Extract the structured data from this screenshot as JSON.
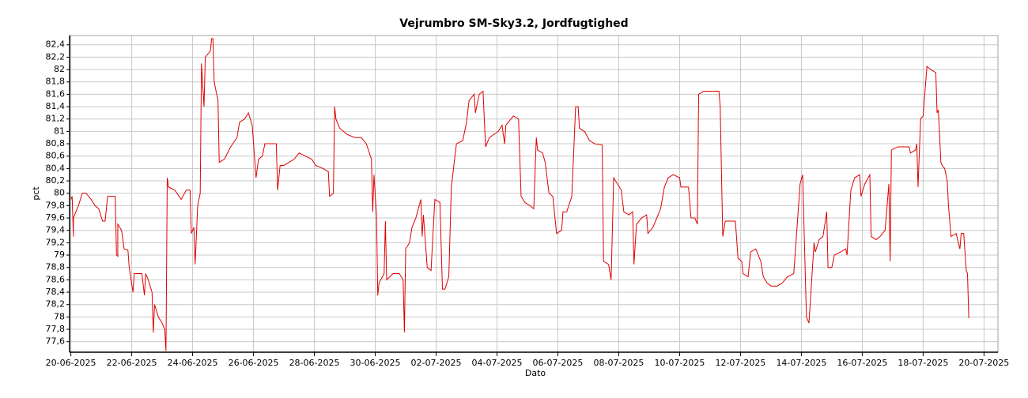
{
  "chart_data": {
    "type": "line",
    "title": "Vejrumbro SM-Sky3.2, Jordfugtighed",
    "x_label": "Dato",
    "y_label": "pct",
    "grid": true,
    "xlim": [
      "2025-06-19 23:00",
      "2025-07-20 11:00"
    ],
    "xticks": [
      {
        "value": "2025-06-20 00:00",
        "label": "20-06-2025"
      },
      {
        "value": "2025-06-22 00:00",
        "label": "22-06-2025"
      },
      {
        "value": "2025-06-24 00:00",
        "label": "24-06-2025"
      },
      {
        "value": "2025-06-26 00:00",
        "label": "26-06-2025"
      },
      {
        "value": "2025-06-28 00:00",
        "label": "28-06-2025"
      },
      {
        "value": "2025-06-30 00:00",
        "label": "30-06-2025"
      },
      {
        "value": "2025-07-02 00:00",
        "label": "02-07-2025"
      },
      {
        "value": "2025-07-04 00:00",
        "label": "04-07-2025"
      },
      {
        "value": "2025-07-06 00:00",
        "label": "06-07-2025"
      },
      {
        "value": "2025-07-08 00:00",
        "label": "08-07-2025"
      },
      {
        "value": "2025-07-10 00:00",
        "label": "10-07-2025"
      },
      {
        "value": "2025-07-12 00:00",
        "label": "12-07-2025"
      },
      {
        "value": "2025-07-14 00:00",
        "label": "14-07-2025"
      },
      {
        "value": "2025-07-16 00:00",
        "label": "16-07-2025"
      },
      {
        "value": "2025-07-18 00:00",
        "label": "18-07-2025"
      },
      {
        "value": "2025-07-20 00:00",
        "label": "20-07-2025"
      }
    ],
    "ylim": [
      77.43,
      82.55
    ],
    "yticks": [
      {
        "value": 77.6,
        "label": "77,6"
      },
      {
        "value": 77.8,
        "label": "77,8"
      },
      78,
      {
        "value": 78.2,
        "label": "78,2"
      },
      {
        "value": 78.4,
        "label": "78,4"
      },
      {
        "value": 78.6,
        "label": "78,6"
      },
      {
        "value": 78.8,
        "label": "78,8"
      },
      79,
      {
        "value": 79.2,
        "label": "79,2"
      },
      {
        "value": 79.4,
        "label": "79,4"
      },
      {
        "value": 79.6,
        "label": "79,6"
      },
      {
        "value": 79.8,
        "label": "79,8"
      },
      80,
      {
        "value": 80.2,
        "label": "80,2"
      },
      {
        "value": 80.4,
        "label": "80,4"
      },
      {
        "value": 80.6,
        "label": "80,6"
      },
      {
        "value": 80.8,
        "label": "80,8"
      },
      81,
      {
        "value": 81.2,
        "label": "81,2"
      },
      {
        "value": 81.4,
        "label": "81,4"
      },
      {
        "value": 81.6,
        "label": "81,6"
      },
      {
        "value": 81.8,
        "label": "81,8"
      },
      82,
      {
        "value": 82.2,
        "label": "82,2"
      },
      {
        "value": 82.4,
        "label": "82,4"
      }
    ],
    "series": [
      {
        "color": "#e00000",
        "x": [
          "2025-06-20 00:00",
          "2025-06-20 01:00",
          "2025-06-20 02:00",
          "2025-06-20 02:00",
          "2025-06-20 04:00",
          "2025-06-20 06:00",
          "2025-06-20 09:00",
          "2025-06-20 12:00",
          "2025-06-20 16:00",
          "2025-06-20 19:00",
          "2025-06-20 22:00",
          "2025-06-21 01:00",
          "2025-06-21 03:00",
          "2025-06-21 05:00",
          "2025-06-21 11:00",
          "2025-06-21 12:00",
          "2025-06-21 13:00",
          "2025-06-21 13:00",
          "2025-06-21 16:00",
          "2025-06-21 18:00",
          "2025-06-21 21:00",
          "2025-06-21 22:00",
          "2025-06-22 01:00",
          "2025-06-22 02:00",
          "2025-06-22 08:00",
          "2025-06-22 10:00",
          "2025-06-22 11:00",
          "2025-06-22 13:00",
          "2025-06-22 16:00",
          "2025-06-22 17:00",
          "2025-06-22 18:00",
          "2025-06-22 21:00",
          "2025-06-23 00:00",
          "2025-06-23 02:00",
          "2025-06-23 03:00",
          "2025-06-23 04:00",
          "2025-06-23 05:00",
          "2025-06-23 10:00",
          "2025-06-23 15:00",
          "2025-06-23 19:00",
          "2025-06-23 22:00",
          "2025-06-23 23:00",
          "2025-06-24 01:00",
          "2025-06-24 02:00",
          "2025-06-24 04:00",
          "2025-06-24 06:00",
          "2025-06-24 07:00",
          "2025-06-24 09:00",
          "2025-06-24 10:00",
          "2025-06-24 14:00",
          "2025-06-24 15:00",
          "2025-06-24 16:00",
          "2025-06-24 17:00",
          "2025-06-24 20:00",
          "2025-06-24 21:00",
          "2025-06-25 01:00",
          "2025-06-25 06:00",
          "2025-06-25 11:00",
          "2025-06-25 13:00",
          "2025-06-25 17:00",
          "2025-06-25 20:00",
          "2025-06-25 23:00",
          "2025-06-26 02:00",
          "2025-06-26 04:00",
          "2025-06-26 07:00",
          "2025-06-26 09:00",
          "2025-06-26 14:00",
          "2025-06-26 18:00",
          "2025-06-26 19:00",
          "2025-06-26 21:00",
          "2025-06-27 00:00",
          "2025-06-27 04:00",
          "2025-06-27 08:00",
          "2025-06-27 12:00",
          "2025-06-27 17:00",
          "2025-06-27 22:00",
          "2025-06-28 01:00",
          "2025-06-28 07:00",
          "2025-06-28 11:00",
          "2025-06-28 12:00",
          "2025-06-28 15:00",
          "2025-06-28 16:00",
          "2025-06-28 17:00",
          "2025-06-28 20:00",
          "2025-06-29 02:00",
          "2025-06-29 08:00",
          "2025-06-29 13:00",
          "2025-06-29 17:00",
          "2025-06-29 21:00",
          "2025-06-29 22:00",
          "2025-06-29 23:00",
          "2025-06-30 01:00",
          "2025-06-30 02:00",
          "2025-06-30 03:00",
          "2025-06-30 07:00",
          "2025-06-30 08:00",
          "2025-06-30 09:00",
          "2025-06-30 14:00",
          "2025-06-30 19:00",
          "2025-06-30 22:00",
          "2025-06-30 23:00",
          "2025-07-01 00:00",
          "2025-07-01 03:00",
          "2025-07-01 05:00",
          "2025-07-01 08:00",
          "2025-07-01 12:00",
          "2025-07-01 13:00",
          "2025-07-01 14:00",
          "2025-07-01 17:00",
          "2025-07-01 20:00",
          "2025-07-01 23:00",
          "2025-07-02 03:00",
          "2025-07-02 05:00",
          "2025-07-02 07:00",
          "2025-07-02 10:00",
          "2025-07-02 12:00",
          "2025-07-02 16:00",
          "2025-07-02 21:00",
          "2025-07-03 00:00",
          "2025-07-03 02:00",
          "2025-07-03 06:00",
          "2025-07-03 07:00",
          "2025-07-03 10:00",
          "2025-07-03 13:00",
          "2025-07-03 15:00",
          "2025-07-03 18:00",
          "2025-07-04 01:00",
          "2025-07-04 04:00",
          "2025-07-04 06:00",
          "2025-07-04 07:00",
          "2025-07-04 13:00",
          "2025-07-04 17:00",
          "2025-07-04 19:00",
          "2025-07-04 22:00",
          "2025-07-05 02:00",
          "2025-07-05 05:00",
          "2025-07-05 07:00",
          "2025-07-05 08:00",
          "2025-07-05 12:00",
          "2025-07-05 14:00",
          "2025-07-05 17:00",
          "2025-07-05 20:00",
          "2025-07-05 23:00",
          "2025-07-06 03:00",
          "2025-07-06 04:00",
          "2025-07-06 07:00",
          "2025-07-06 11:00",
          "2025-07-06 14:00",
          "2025-07-06 16:00",
          "2025-07-06 17:00",
          "2025-07-06 21:00",
          "2025-07-07 01:00",
          "2025-07-07 05:00",
          "2025-07-07 11:00",
          "2025-07-07 12:00",
          "2025-07-07 16:00",
          "2025-07-07 18:00",
          "2025-07-07 20:00",
          "2025-07-08 02:00",
          "2025-07-08 04:00",
          "2025-07-08 08:00",
          "2025-07-08 11:00",
          "2025-07-08 12:00",
          "2025-07-08 14:00",
          "2025-07-08 18:00",
          "2025-07-08 22:00",
          "2025-07-08 23:00",
          "2025-07-09 03:00",
          "2025-07-09 05:00",
          "2025-07-09 09:00",
          "2025-07-09 12:00",
          "2025-07-09 15:00",
          "2025-07-09 19:00",
          "2025-07-10 00:00",
          "2025-07-10 01:00",
          "2025-07-10 07:00",
          "2025-07-10 09:00",
          "2025-07-10 12:00",
          "2025-07-10 14:00",
          "2025-07-10 15:00",
          "2025-07-10 19:00",
          "2025-07-11 01:00",
          "2025-07-11 07:00",
          "2025-07-11 08:00",
          "2025-07-11 10:00",
          "2025-07-11 12:00",
          "2025-07-11 20:00",
          "2025-07-11 22:00",
          "2025-07-12 01:00",
          "2025-07-12 02:00",
          "2025-07-12 06:00",
          "2025-07-12 08:00",
          "2025-07-12 12:00",
          "2025-07-12 16:00",
          "2025-07-12 18:00",
          "2025-07-12 21:00",
          "2025-07-13 00:00",
          "2025-07-13 05:00",
          "2025-07-13 09:00",
          "2025-07-13 13:00",
          "2025-07-13 18:00",
          "2025-07-13 23:00",
          "2025-07-14 01:00",
          "2025-07-14 03:00",
          "2025-07-14 04:00",
          "2025-07-14 06:00",
          "2025-07-14 10:00",
          "2025-07-14 11:00",
          "2025-07-14 14:00",
          "2025-07-14 17:00",
          "2025-07-14 20:00",
          "2025-07-14 21:00",
          "2025-07-15 00:00",
          "2025-07-15 02:00",
          "2025-07-15 07:00",
          "2025-07-15 11:00",
          "2025-07-15 12:00",
          "2025-07-15 15:00",
          "2025-07-15 18:00",
          "2025-07-15 22:00",
          "2025-07-15 23:00",
          "2025-07-16 02:00",
          "2025-07-16 06:00",
          "2025-07-16 07:00",
          "2025-07-16 11:00",
          "2025-07-16 14:00",
          "2025-07-16 18:00",
          "2025-07-16 21:00",
          "2025-07-16 22:00",
          "2025-07-16 23:00",
          "2025-07-17 04:00",
          "2025-07-17 10:00",
          "2025-07-17 13:00",
          "2025-07-17 14:00",
          "2025-07-17 18:00",
          "2025-07-17 19:00",
          "2025-07-17 20:00",
          "2025-07-17 22:00",
          "2025-07-18 00:00",
          "2025-07-18 03:00",
          "2025-07-18 06:00",
          "2025-07-18 10:00",
          "2025-07-18 11:00",
          "2025-07-18 12:00",
          "2025-07-18 14:00",
          "2025-07-18 15:00",
          "2025-07-18 17:00",
          "2025-07-18 19:00",
          "2025-07-18 20:00",
          "2025-07-18 22:00",
          "2025-07-19 02:00",
          "2025-07-19 05:00",
          "2025-07-19 06:00",
          "2025-07-19 08:00",
          "2025-07-19 10:00",
          "2025-07-19 11:00",
          "2025-07-19 12:00"
        ],
        "values": [
          79.9,
          79.95,
          79.3,
          79.6,
          79.7,
          79.8,
          80.0,
          80.0,
          79.9,
          79.8,
          79.75,
          79.55,
          79.55,
          79.95,
          79.95,
          79.0,
          78.98,
          79.5,
          79.4,
          79.1,
          79.08,
          78.8,
          78.4,
          78.7,
          78.7,
          78.35,
          78.7,
          78.6,
          78.4,
          77.75,
          78.2,
          78.0,
          77.9,
          77.8,
          77.45,
          80.25,
          80.1,
          80.05,
          79.9,
          80.05,
          80.05,
          79.35,
          79.45,
          78.85,
          79.8,
          80.0,
          82.1,
          81.4,
          82.2,
          82.3,
          82.5,
          82.5,
          81.8,
          81.5,
          80.5,
          80.55,
          80.75,
          80.9,
          81.15,
          81.2,
          81.3,
          81.1,
          80.25,
          80.55,
          80.6,
          80.8,
          80.8,
          80.8,
          80.05,
          80.45,
          80.45,
          80.5,
          80.55,
          80.65,
          80.6,
          80.55,
          80.45,
          80.4,
          80.35,
          79.95,
          80.0,
          81.4,
          81.2,
          81.05,
          80.95,
          80.9,
          80.9,
          80.8,
          80.55,
          79.7,
          80.3,
          79.65,
          78.35,
          78.55,
          78.7,
          79.55,
          78.6,
          78.7,
          78.7,
          78.6,
          77.75,
          79.1,
          79.2,
          79.45,
          79.6,
          79.9,
          79.3,
          79.65,
          78.8,
          78.75,
          79.9,
          79.85,
          78.45,
          78.45,
          78.65,
          80.1,
          80.8,
          80.85,
          81.15,
          81.5,
          81.6,
          81.3,
          81.6,
          81.65,
          80.75,
          80.9,
          81.0,
          81.1,
          80.8,
          81.1,
          81.25,
          81.2,
          79.95,
          79.85,
          79.8,
          79.75,
          80.9,
          80.7,
          80.65,
          80.5,
          80.0,
          79.95,
          79.35,
          79.4,
          79.7,
          79.7,
          79.95,
          81.4,
          81.4,
          81.05,
          81.0,
          80.85,
          80.8,
          80.78,
          78.9,
          78.85,
          78.6,
          80.25,
          80.05,
          79.7,
          79.65,
          79.7,
          78.85,
          79.5,
          79.6,
          79.65,
          79.35,
          79.45,
          79.55,
          79.75,
          80.1,
          80.25,
          80.3,
          80.25,
          80.1,
          80.1,
          79.6,
          79.6,
          79.5,
          81.6,
          81.65,
          81.65,
          81.65,
          81.4,
          79.3,
          79.55,
          79.55,
          78.95,
          78.9,
          78.7,
          78.65,
          79.05,
          79.1,
          78.9,
          78.65,
          78.55,
          78.5,
          78.5,
          78.55,
          78.65,
          78.7,
          80.15,
          80.3,
          78.75,
          78.0,
          77.9,
          79.2,
          79.05,
          79.25,
          79.3,
          79.7,
          78.8,
          78.8,
          79.0,
          79.05,
          79.1,
          79.0,
          80.05,
          80.25,
          80.3,
          79.95,
          80.15,
          80.3,
          79.3,
          79.25,
          79.3,
          79.4,
          80.15,
          78.9,
          80.7,
          80.75,
          80.75,
          80.75,
          80.65,
          80.7,
          80.8,
          80.1,
          81.2,
          81.25,
          82.05,
          82.0,
          81.95,
          81.3,
          81.35,
          80.5,
          80.45,
          80.4,
          80.2,
          79.8,
          79.3,
          79.35,
          79.1,
          79.35,
          79.35,
          78.75,
          78.7,
          77.98
        ]
      }
    ]
  }
}
